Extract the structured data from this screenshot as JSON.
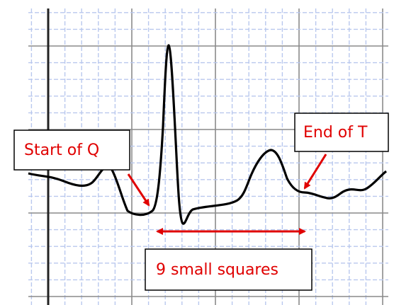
{
  "annotations": {
    "start_label": "Start of Q",
    "end_label": "End of T",
    "interval_label": "9 small squares"
  }
}
